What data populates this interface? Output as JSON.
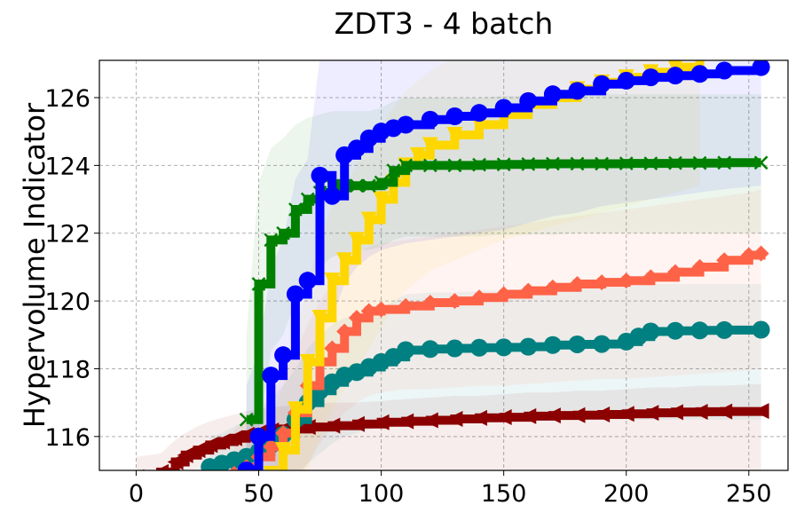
{
  "chart_data": {
    "type": "line",
    "title": "ZDT3 - 4 batch",
    "xlabel": "",
    "ylabel": "Hypervolume Indicator",
    "xlim": [
      -15,
      266
    ],
    "ylim": [
      115,
      127.1
    ],
    "xticks": [
      0,
      50,
      100,
      150,
      200,
      250
    ],
    "yticks": [
      116,
      118,
      120,
      122,
      124,
      126
    ],
    "xtick_labels": [
      "0",
      "50",
      "100",
      "150",
      "200",
      "250"
    ],
    "ytick_labels": [
      "116",
      "118",
      "120",
      "122",
      "124",
      "126"
    ],
    "grid": true,
    "legend": "none",
    "series": [
      {
        "color": "#8b0000",
        "marker": "triangle-left",
        "x": [
          0,
          10,
          16,
          20,
          25,
          30,
          35,
          40,
          45,
          50,
          55,
          60,
          70,
          80,
          90,
          100,
          110,
          120,
          130,
          140,
          150,
          160,
          170,
          180,
          190,
          200,
          210,
          220,
          230,
          240,
          255
        ],
        "y": [
          114.8,
          114.95,
          115.25,
          115.45,
          115.6,
          115.75,
          115.85,
          115.95,
          116.05,
          116.12,
          116.18,
          116.22,
          116.28,
          116.32,
          116.37,
          116.42,
          116.45,
          116.48,
          116.52,
          116.55,
          116.57,
          116.6,
          116.62,
          116.63,
          116.65,
          116.67,
          116.7,
          116.72,
          116.73,
          116.74,
          116.75
        ],
        "band_low": [
          114.0,
          114.0,
          114.0,
          114.0,
          114.0,
          114.0,
          114.0,
          114.0,
          114.0,
          114.0,
          114.0,
          114.0,
          114.0,
          114.0,
          114.0,
          114.0,
          114.0,
          114.0,
          114.0,
          114.0,
          114.0,
          114.0,
          114.0,
          114.0,
          114.0,
          114.0,
          114.0,
          114.0,
          114.0,
          114.0,
          114.0
        ],
        "band_high": [
          115.4,
          115.5,
          115.9,
          116.1,
          116.3,
          116.45,
          116.55,
          116.65,
          116.75,
          116.8,
          116.85,
          116.9,
          116.95,
          117.0,
          117.0,
          117.05,
          117.1,
          117.15,
          117.2,
          117.2,
          117.25,
          117.3,
          117.3,
          117.35,
          117.35,
          117.4,
          117.45,
          117.45,
          117.5,
          117.5,
          117.55
        ]
      },
      {
        "color": "#008080",
        "marker": "circle",
        "x": [
          30,
          35,
          40,
          45,
          50,
          55,
          60,
          65,
          70,
          75,
          80,
          85,
          90,
          95,
          100,
          105,
          110,
          120,
          130,
          140,
          150,
          160,
          170,
          180,
          190,
          200,
          205,
          210,
          220,
          230,
          240,
          255
        ],
        "y": [
          115.1,
          115.2,
          115.3,
          115.4,
          115.55,
          115.75,
          116.05,
          116.5,
          117.0,
          117.35,
          117.6,
          117.8,
          117.9,
          118.05,
          118.2,
          118.35,
          118.55,
          118.58,
          118.6,
          118.62,
          118.63,
          118.65,
          118.7,
          118.72,
          118.73,
          118.8,
          118.95,
          119.1,
          119.12,
          119.13,
          119.14,
          119.15
        ],
        "band_low": [
          114.0,
          114.0,
          114.0,
          114.0,
          114.0,
          114.0,
          114.3,
          114.8,
          115.2,
          115.5,
          115.8,
          116.0,
          116.1,
          116.2,
          116.3,
          116.4,
          116.5,
          116.5,
          116.5,
          116.5,
          116.5,
          116.5,
          116.5,
          116.5,
          116.5,
          116.5,
          116.5,
          116.5,
          116.5,
          116.5,
          116.5,
          116.5
        ],
        "band_high": [
          116.0,
          116.1,
          116.3,
          116.5,
          116.8,
          117.1,
          117.5,
          118.0,
          118.6,
          119.0,
          119.3,
          119.5,
          119.6,
          119.7,
          119.8,
          120.0,
          120.2,
          120.25,
          120.25,
          120.3,
          120.3,
          120.3,
          120.35,
          120.35,
          120.4,
          120.4,
          120.45,
          120.5,
          120.5,
          120.5,
          120.5,
          120.5
        ]
      },
      {
        "color": "#ff6347",
        "marker": "diamond",
        "x": [
          40,
          45,
          50,
          55,
          60,
          65,
          70,
          75,
          80,
          85,
          90,
          95,
          100,
          110,
          120,
          130,
          140,
          150,
          160,
          170,
          180,
          190,
          200,
          210,
          220,
          230,
          240,
          250,
          255
        ],
        "y": [
          114.9,
          115.1,
          115.4,
          115.7,
          116.1,
          116.7,
          117.5,
          118.2,
          118.6,
          119.1,
          119.5,
          119.7,
          119.75,
          119.85,
          119.95,
          120.0,
          120.1,
          120.2,
          120.3,
          120.4,
          120.5,
          120.55,
          120.6,
          120.7,
          120.85,
          121.0,
          121.2,
          121.35,
          121.4
        ],
        "band_low": [
          114.0,
          114.0,
          114.0,
          114.0,
          114.2,
          114.6,
          115.2,
          115.8,
          116.3,
          116.7,
          117.0,
          117.2,
          117.3,
          117.4,
          117.4,
          117.45,
          117.5,
          117.5,
          117.55,
          117.6,
          117.65,
          117.7,
          117.7,
          117.75,
          117.8,
          117.85,
          117.9,
          117.95,
          118.0
        ],
        "band_high": [
          116.2,
          116.5,
          116.9,
          117.3,
          117.8,
          118.5,
          119.3,
          120.0,
          120.5,
          121.0,
          121.4,
          121.6,
          121.7,
          121.8,
          121.9,
          122.0,
          122.1,
          122.2,
          122.3,
          122.4,
          122.5,
          122.6,
          122.7,
          122.8,
          122.9,
          123.0,
          123.1,
          123.2,
          123.3
        ]
      },
      {
        "color": "#ffd700",
        "marker": "triangle-down",
        "x": [
          55,
          60,
          65,
          70,
          75,
          80,
          85,
          90,
          95,
          100,
          105,
          110,
          115,
          120,
          130,
          140,
          150,
          160,
          170,
          180,
          190,
          200,
          210,
          220,
          230
        ],
        "y": [
          114.9,
          115.6,
          116.8,
          118.2,
          119.5,
          120.6,
          121.2,
          121.8,
          122.4,
          123.0,
          123.5,
          124.0,
          124.3,
          124.6,
          124.9,
          125.2,
          125.5,
          125.8,
          126.0,
          126.25,
          126.45,
          126.6,
          126.75,
          126.9,
          127.1
        ],
        "band_low": [
          114.0,
          114.0,
          114.3,
          115.0,
          116.0,
          116.8,
          117.4,
          118.0,
          118.6,
          119.2,
          119.8,
          120.3,
          120.6,
          120.9,
          121.2,
          121.5,
          121.8,
          122.0,
          122.2,
          122.4,
          122.6,
          122.8,
          123.0,
          123.2,
          123.4
        ],
        "band_high": [
          116.5,
          117.5,
          119.0,
          120.5,
          121.8,
          122.8,
          123.4,
          124.0,
          124.6,
          125.2,
          125.7,
          126.2,
          126.5,
          126.8,
          127.2,
          127.6,
          128.0,
          128.3,
          128.6,
          128.9,
          129.1,
          129.3,
          129.5,
          129.7,
          129.9
        ]
      },
      {
        "color": "#008000",
        "marker": "x",
        "x": [
          45,
          50,
          55,
          60,
          65,
          70,
          75,
          80,
          85,
          90,
          95,
          100,
          105,
          110,
          120,
          130,
          140,
          150,
          160,
          170,
          180,
          190,
          200,
          210,
          220,
          230,
          240,
          255
        ],
        "y": [
          116.5,
          120.5,
          121.8,
          122.0,
          122.7,
          123.0,
          123.2,
          123.4,
          123.4,
          123.4,
          123.4,
          123.5,
          123.85,
          124.0,
          124.0,
          124.0,
          124.02,
          124.03,
          124.04,
          124.05,
          124.05,
          124.05,
          124.06,
          124.06,
          124.07,
          124.07,
          124.08,
          124.08
        ],
        "band_low": [
          114.0,
          116.0,
          118.5,
          119.0,
          120.0,
          120.6,
          121.0,
          121.3,
          121.4,
          121.5,
          121.5,
          121.6,
          121.8,
          121.9,
          121.9,
          121.9,
          121.9,
          121.95,
          121.95,
          121.95,
          122.0,
          122.0,
          122.0,
          122.0,
          122.0,
          122.0,
          122.0,
          122.0
        ],
        "band_high": [
          119.0,
          123.5,
          124.5,
          124.8,
          125.2,
          125.4,
          125.5,
          125.6,
          125.6,
          125.6,
          125.6,
          125.7,
          125.9,
          126.0,
          126.0,
          126.0,
          126.0,
          126.05,
          126.05,
          126.05,
          126.1,
          126.1,
          126.1,
          126.1,
          126.1,
          126.1,
          126.1,
          126.1
        ]
      },
      {
        "color": "#0000ff",
        "marker": "circle",
        "x": [
          45,
          50,
          55,
          60,
          65,
          70,
          75,
          80,
          85,
          90,
          95,
          100,
          105,
          110,
          120,
          130,
          140,
          150,
          160,
          170,
          180,
          190,
          200,
          210,
          220,
          230,
          240,
          255
        ],
        "y": [
          115.0,
          116.0,
          117.8,
          118.4,
          120.2,
          120.6,
          123.7,
          123.1,
          124.3,
          124.5,
          124.8,
          125.0,
          125.1,
          125.2,
          125.35,
          125.45,
          125.55,
          125.7,
          125.9,
          126.1,
          126.2,
          126.4,
          126.5,
          126.6,
          126.65,
          126.7,
          126.8,
          126.9
        ],
        "band_low": [
          114.0,
          114.0,
          114.5,
          115.0,
          116.5,
          117.0,
          119.5,
          119.5,
          120.5,
          121.0,
          121.3,
          121.5,
          121.6,
          121.7,
          121.8,
          121.9,
          122.0,
          122.1,
          122.3,
          122.5,
          122.6,
          122.8,
          122.9,
          123.0,
          123.1,
          123.2,
          123.3,
          123.4
        ],
        "band_high": [
          117.5,
          118.5,
          121.0,
          121.8,
          123.6,
          124.2,
          127.2,
          127.2,
          127.3,
          127.4,
          127.5,
          127.6,
          127.6,
          127.7,
          127.8,
          127.9,
          128.0,
          128.1,
          128.2,
          128.3,
          128.4,
          128.5,
          128.6,
          128.7,
          128.8,
          128.9,
          129.0,
          129.1
        ]
      }
    ]
  }
}
